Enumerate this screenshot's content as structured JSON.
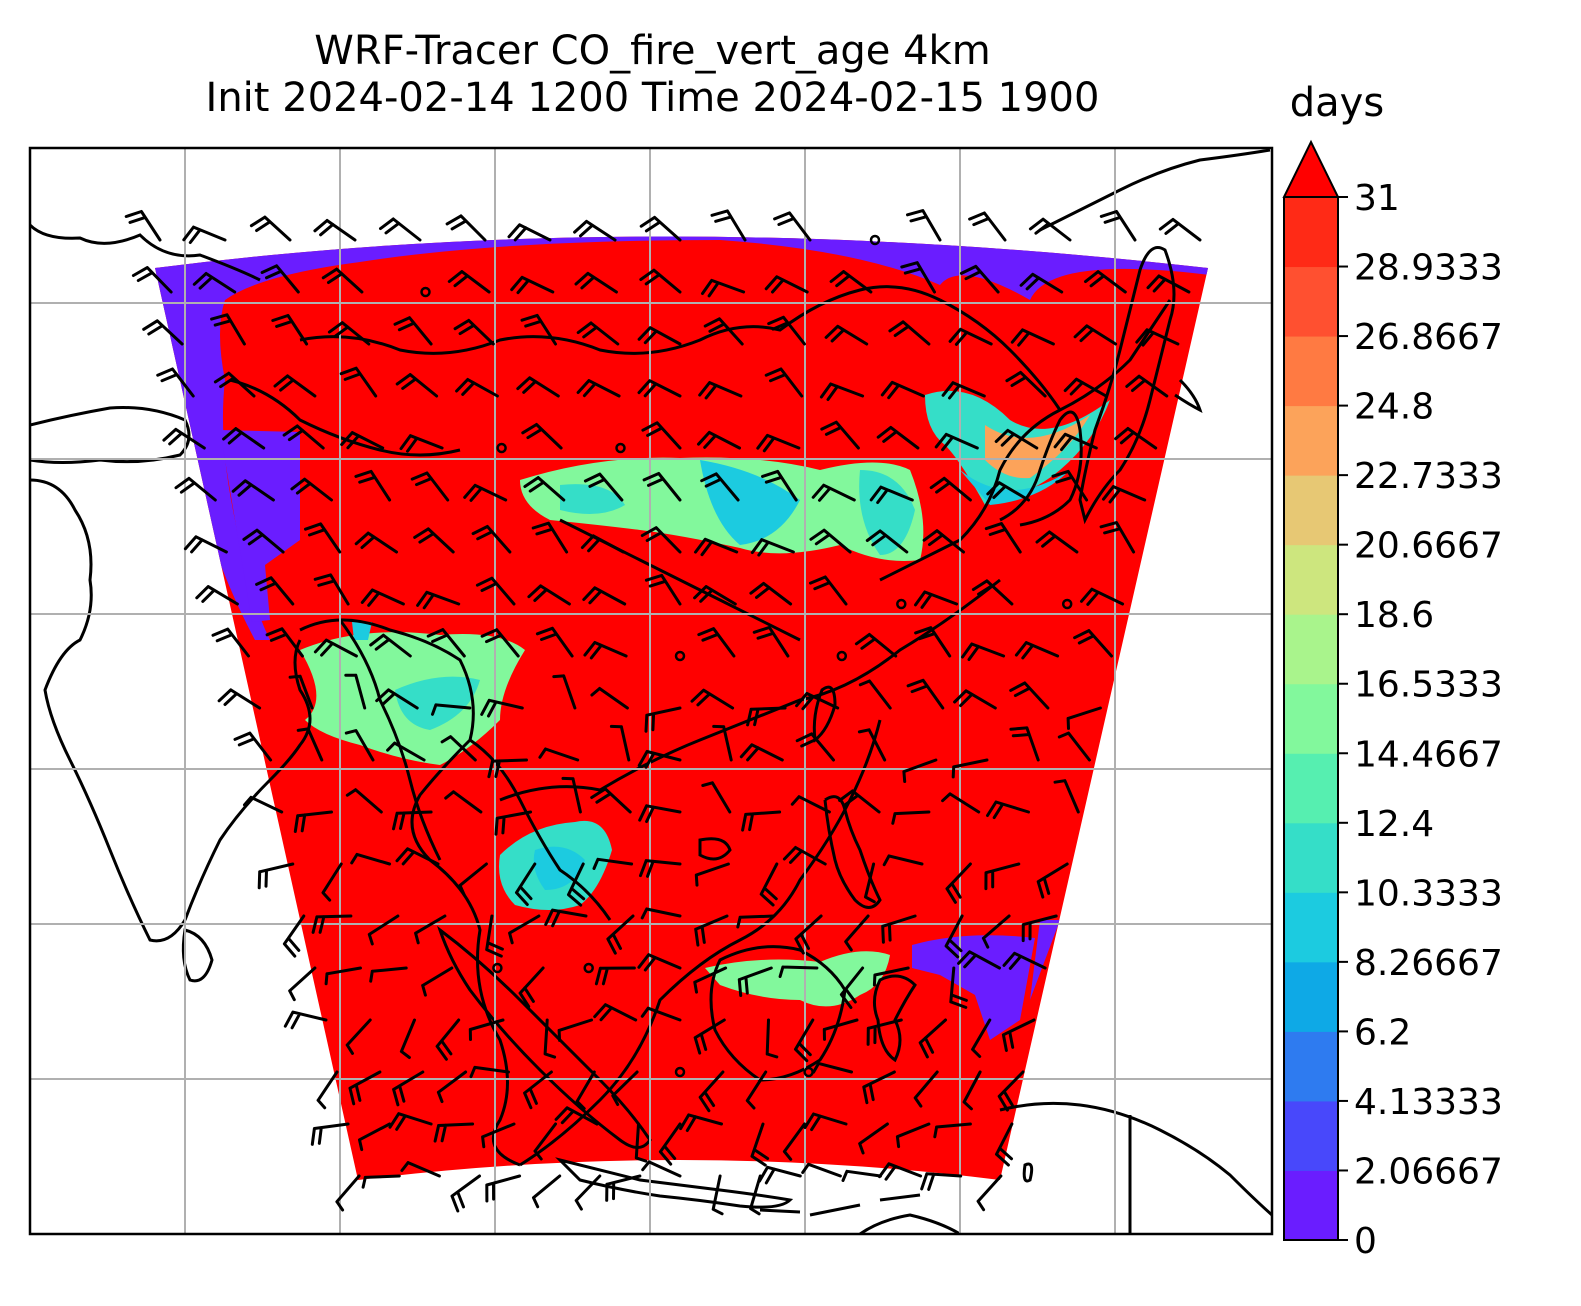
{
  "title": {
    "line1": "WRF-Tracer CO_fire_vert_age 4km",
    "line2": "Init 2024-02-14 1200 Time 2024-02-15 1900"
  },
  "colorbar": {
    "unit": "days",
    "extend": "max",
    "ticks": [
      "0",
      "2.06667",
      "4.13333",
      "6.2",
      "8.26667",
      "10.3333",
      "12.4",
      "14.4667",
      "16.5333",
      "18.6",
      "20.6667",
      "22.7333",
      "24.8",
      "26.8667",
      "28.9333",
      "31"
    ],
    "colors": [
      "#6a1dff",
      "#4848fb",
      "#2e7bf0",
      "#0ea9e6",
      "#1ccbe0",
      "#35dec8",
      "#56efb0",
      "#82f89c",
      "#a9f48c",
      "#cde67e",
      "#e7c874",
      "#fca35a",
      "#ff7a42",
      "#ff5030",
      "#ff2a16"
    ],
    "over_color": "#ff0000"
  },
  "map": {
    "field_colors": {
      "background": "#ff0000",
      "low_age": "#6a1dff",
      "mid_age_teal": "#35dec8",
      "mid_age_green": "#82f89c",
      "mid_age_blue": "#1ccbe0",
      "mid_age_orange": "#fca35a"
    },
    "gridline_color": "#b0b0b0",
    "coastline_color": "#000000",
    "barb_color": "#000000"
  }
}
